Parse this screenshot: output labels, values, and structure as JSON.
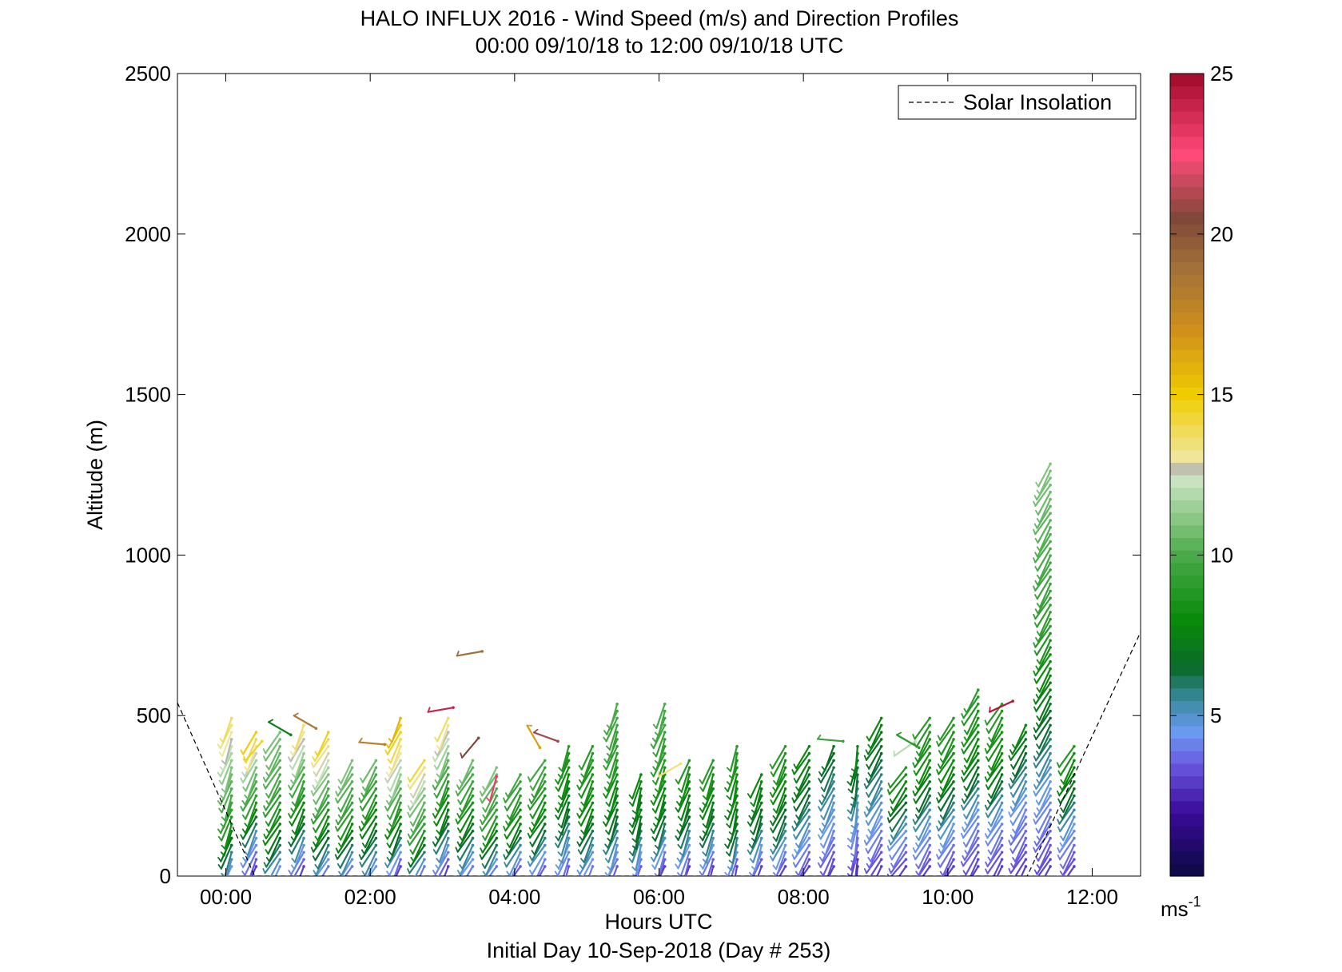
{
  "chart_data": {
    "type": "barb",
    "title": "HALO INFLUX 2016 - Wind Speed (m/s) and Direction Profiles",
    "subtitle": "00:00 09/10/18 to 12:00 09/10/18  UTC",
    "xlabel": "Hours UTC",
    "ylabel": "Altitude (m)",
    "footer": "Initial Day 10-Sep-2018 (Day # 253)",
    "xlim": [
      -0.67,
      12.67
    ],
    "ylim": [
      0,
      2500
    ],
    "x_ticks": [
      0,
      2,
      4,
      6,
      8,
      10,
      12
    ],
    "x_tick_labels": [
      "00:00",
      "02:00",
      "04:00",
      "06:00",
      "08:00",
      "10:00",
      "12:00"
    ],
    "y_ticks": [
      0,
      500,
      1000,
      1500,
      2000,
      2500
    ],
    "y_tick_labels": [
      "0",
      "500",
      "1000",
      "1500",
      "2000",
      "2500"
    ],
    "legend": {
      "label": "Solar Insolation",
      "position": "top-right"
    },
    "solar_insolation": {
      "x": [
        -0.67,
        0.4,
        11.1,
        12.67
      ],
      "y": [
        540,
        0,
        0,
        760
      ]
    },
    "colorbar": {
      "unit": "ms-1",
      "unit_base": "ms",
      "unit_exp": "-1",
      "range": [
        0,
        25
      ],
      "ticks": [
        5,
        10,
        15,
        20,
        25
      ],
      "tick_labels": [
        "5",
        "10",
        "15",
        "20",
        "25"
      ],
      "stops": [
        {
          "v": 0,
          "color": "#0a0a40"
        },
        {
          "v": 2,
          "color": "#3a0a9a"
        },
        {
          "v": 3.5,
          "color": "#6a5ae0"
        },
        {
          "v": 4.5,
          "color": "#6a9af0"
        },
        {
          "v": 5.5,
          "color": "#3a8aa0"
        },
        {
          "v": 6.5,
          "color": "#0a6a2a"
        },
        {
          "v": 8,
          "color": "#0a8a0a"
        },
        {
          "v": 10,
          "color": "#4aaa4a"
        },
        {
          "v": 12.3,
          "color": "#c8e4c0"
        },
        {
          "v": 12.6,
          "color": "#b4b4b4"
        },
        {
          "v": 13,
          "color": "#f0e6a0"
        },
        {
          "v": 15,
          "color": "#f0cc00"
        },
        {
          "v": 17,
          "color": "#d0901a"
        },
        {
          "v": 19,
          "color": "#a0703a"
        },
        {
          "v": 20.5,
          "color": "#804838"
        },
        {
          "v": 22.5,
          "color": "#ff4a7a"
        },
        {
          "v": 25,
          "color": "#a00a2a"
        }
      ]
    },
    "profiles": [
      {
        "t": 0.08,
        "top": 500,
        "dir": 200,
        "speeds": [
          4.5,
          9,
          11,
          14
        ]
      },
      {
        "t": 0.42,
        "top": 450,
        "dir": 205,
        "speeds": [
          3,
          5,
          9,
          11,
          15
        ]
      },
      {
        "t": 0.75,
        "top": 460,
        "dir": 210,
        "speeds": [
          4.5,
          8,
          10,
          11
        ]
      },
      {
        "t": 1.08,
        "top": 480,
        "dir": 205,
        "speeds": [
          3,
          7,
          10,
          14
        ]
      },
      {
        "t": 1.42,
        "top": 460,
        "dir": 210,
        "speeds": [
          4,
          8,
          11,
          15
        ]
      },
      {
        "t": 1.75,
        "top": 360,
        "dir": 210,
        "speeds": [
          4,
          9,
          11
        ]
      },
      {
        "t": 2.08,
        "top": 380,
        "dir": 210,
        "speeds": [
          4.5,
          8,
          11
        ]
      },
      {
        "t": 2.42,
        "top": 500,
        "dir": 205,
        "speeds": [
          3,
          7,
          10,
          13,
          16
        ]
      },
      {
        "t": 2.75,
        "top": 380,
        "dir": 210,
        "speeds": [
          4,
          9,
          11,
          15
        ]
      },
      {
        "t": 3.08,
        "top": 500,
        "dir": 205,
        "speeds": [
          3,
          7,
          10,
          14
        ]
      },
      {
        "t": 3.42,
        "top": 380,
        "dir": 210,
        "speeds": [
          4,
          8,
          11
        ]
      },
      {
        "t": 3.75,
        "top": 340,
        "dir": 210,
        "speeds": [
          4,
          9,
          11
        ]
      },
      {
        "t": 4.08,
        "top": 330,
        "dir": 210,
        "speeds": [
          3.5,
          8,
          10
        ]
      },
      {
        "t": 4.42,
        "top": 380,
        "dir": 210,
        "speeds": [
          3.5,
          8,
          10
        ]
      },
      {
        "t": 4.75,
        "top": 420,
        "dir": 200,
        "speeds": [
          3.5,
          7,
          9
        ]
      },
      {
        "t": 5.08,
        "top": 420,
        "dir": 205,
        "speeds": [
          4,
          8,
          9
        ]
      },
      {
        "t": 5.42,
        "top": 540,
        "dir": 200,
        "speeds": [
          3.5,
          7,
          9,
          10
        ]
      },
      {
        "t": 5.75,
        "top": 330,
        "dir": 195,
        "speeds": [
          3.5,
          7,
          8
        ]
      },
      {
        "t": 6.08,
        "top": 540,
        "dir": 200,
        "speeds": [
          3,
          7,
          9,
          10
        ]
      },
      {
        "t": 6.42,
        "top": 380,
        "dir": 200,
        "speeds": [
          3,
          7,
          9
        ]
      },
      {
        "t": 6.75,
        "top": 360,
        "dir": 200,
        "speeds": [
          3,
          7,
          9
        ]
      },
      {
        "t": 7.08,
        "top": 420,
        "dir": 195,
        "speeds": [
          3,
          7,
          8,
          9
        ]
      },
      {
        "t": 7.42,
        "top": 320,
        "dir": 200,
        "speeds": [
          3,
          6.5,
          8
        ]
      },
      {
        "t": 7.75,
        "top": 420,
        "dir": 205,
        "speeds": [
          3,
          6,
          8,
          9
        ]
      },
      {
        "t": 8.08,
        "top": 420,
        "dir": 210,
        "speeds": [
          3,
          5,
          7,
          8
        ]
      },
      {
        "t": 8.42,
        "top": 420,
        "dir": 205,
        "speeds": [
          3,
          5,
          7
        ]
      },
      {
        "t": 8.75,
        "top": 420,
        "dir": 190,
        "speeds": [
          2.5,
          5,
          8
        ]
      },
      {
        "t": 9.08,
        "top": 500,
        "dir": 210,
        "speeds": [
          3,
          4.5,
          6,
          8
        ]
      },
      {
        "t": 9.42,
        "top": 350,
        "dir": 215,
        "speeds": [
          3,
          4.5,
          7,
          9
        ]
      },
      {
        "t": 9.75,
        "top": 500,
        "dir": 210,
        "speeds": [
          3,
          5,
          8,
          9
        ]
      },
      {
        "t": 10.08,
        "top": 500,
        "dir": 210,
        "speeds": [
          3,
          5,
          8,
          9
        ]
      },
      {
        "t": 10.42,
        "top": 580,
        "dir": 210,
        "speeds": [
          3,
          4.5,
          8,
          9
        ]
      },
      {
        "t": 10.75,
        "top": 540,
        "dir": 210,
        "speeds": [
          3,
          4.5,
          8,
          9
        ]
      },
      {
        "t": 11.08,
        "top": 480,
        "dir": 210,
        "speeds": [
          3,
          4.5,
          8
        ]
      },
      {
        "t": 11.42,
        "top": 1290,
        "dir": 210,
        "speeds": [
          3,
          4.5,
          7,
          9,
          10,
          11
        ]
      },
      {
        "t": 11.75,
        "top": 420,
        "dir": 210,
        "speeds": [
          3,
          4.5,
          7,
          9
        ]
      }
    ],
    "isolated_barbs": [
      {
        "t": 3.55,
        "alt": 700,
        "dir": 260,
        "speed": 19
      },
      {
        "t": 3.15,
        "alt": 525,
        "dir": 260,
        "speed": 24
      },
      {
        "t": 10.9,
        "alt": 545,
        "dir": 245,
        "speed": 24.5
      },
      {
        "t": 2.2,
        "alt": 410,
        "dir": 275,
        "speed": 18
      },
      {
        "t": 1.25,
        "alt": 460,
        "dir": 300,
        "speed": 18.5
      },
      {
        "t": 3.5,
        "alt": 430,
        "dir": 220,
        "speed": 20.5
      },
      {
        "t": 4.6,
        "alt": 420,
        "dir": 290,
        "speed": 21
      },
      {
        "t": 4.35,
        "alt": 400,
        "dir": 330,
        "speed": 16.5
      },
      {
        "t": 3.75,
        "alt": 310,
        "dir": 195,
        "speed": 23
      },
      {
        "t": 0.9,
        "alt": 440,
        "dir": 300,
        "speed": 7.5
      },
      {
        "t": 0.5,
        "alt": 420,
        "dir": 220,
        "speed": 14.5
      },
      {
        "t": 6.3,
        "alt": 350,
        "dir": 240,
        "speed": 13.5
      },
      {
        "t": 8.55,
        "alt": 420,
        "dir": 275,
        "speed": 9.5
      },
      {
        "t": 9.55,
        "alt": 420,
        "dir": 235,
        "speed": 12
      },
      {
        "t": 9.6,
        "alt": 400,
        "dir": 300,
        "speed": 9
      }
    ]
  }
}
